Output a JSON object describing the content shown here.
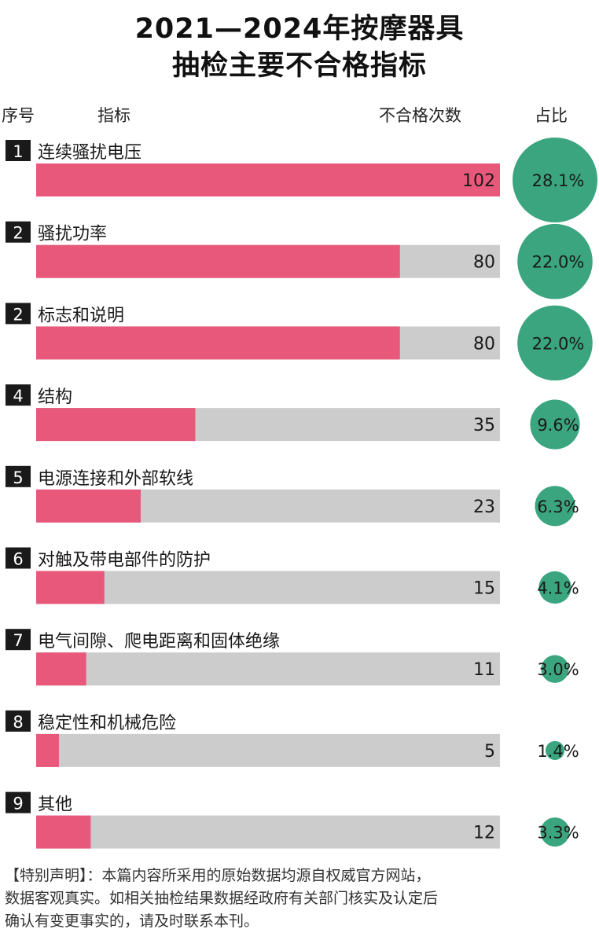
{
  "title": [
    "2021—2024年按摩器具",
    "抽检主要不合格指标"
  ],
  "headers": {
    "seq": "序号",
    "indicator": "指标",
    "count": "不合格次数",
    "ratio": "占比"
  },
  "chart_data": {
    "type": "bar",
    "orientation": "horizontal",
    "xlim": [
      0,
      102
    ],
    "bar_color": "#e8587a",
    "track_color": "#cccccc",
    "circle_color": "#3aa57f",
    "rows": [
      {
        "rank": "1",
        "label": "连续骚扰电压",
        "value": 102,
        "share": "28.1%"
      },
      {
        "rank": "2",
        "label": "骚扰功率",
        "value": 80,
        "share": "22.0%"
      },
      {
        "rank": "2",
        "label": "标志和说明",
        "value": 80,
        "share": "22.0%"
      },
      {
        "rank": "4",
        "label": "结构",
        "value": 35,
        "share": "9.6%"
      },
      {
        "rank": "5",
        "label": "电源连接和外部软线",
        "value": 23,
        "share": "6.3%"
      },
      {
        "rank": "6",
        "label": "对触及带电部件的防护",
        "value": 15,
        "share": "4.1%"
      },
      {
        "rank": "7",
        "label": "电气间隙、爬电距离和固体绝缘",
        "value": 11,
        "share": "3.0%"
      },
      {
        "rank": "8",
        "label": "稳定性和机械危险",
        "value": 5,
        "share": "1.4%"
      },
      {
        "rank": "9",
        "label": "其他",
        "value": 12,
        "share": "3.3%"
      }
    ]
  },
  "note": [
    "【特别声明】：本篇内容所采用的原始数据均源自权威官方网站，",
    "数据客观真实。如相关抽检结果数据经政府有关部门核实及认定后",
    "确认有变更事实的，请及时联系本刊。"
  ]
}
